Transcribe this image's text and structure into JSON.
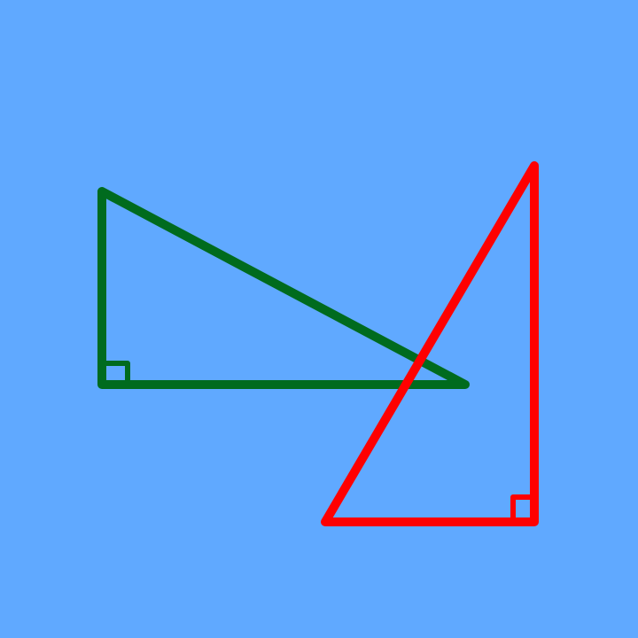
{
  "background_color": "#60A9FF",
  "shapes": [
    {
      "name": "green-right-triangle",
      "color": "#006B1E",
      "right_angle": "bottom-left"
    },
    {
      "name": "red-right-triangle",
      "color": "#FF0000",
      "right_angle": "bottom-right"
    }
  ]
}
